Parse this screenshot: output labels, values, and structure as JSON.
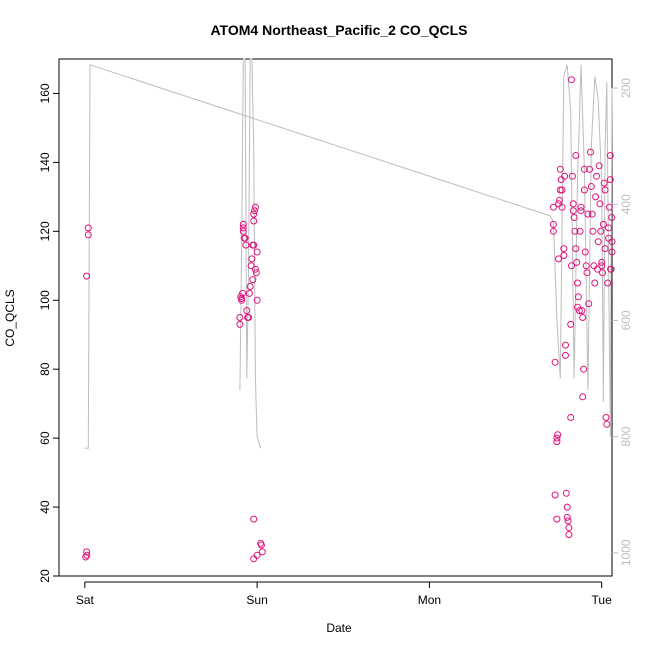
{
  "chart_data": {
    "type": "scatter",
    "title": "ATOM4 Northeast_Pacific_2 CO_QCLS",
    "xlabel": "Date",
    "ylabel": "CO_QCLS",
    "x_ticks": [
      {
        "label": "Sat",
        "day": 0
      },
      {
        "label": "Sun",
        "day": 1
      },
      {
        "label": "Mon",
        "day": 2
      },
      {
        "label": "Tue",
        "day": 3
      }
    ],
    "xlim_days": [
      -0.15,
      3.06
    ],
    "ylim": [
      20,
      170
    ],
    "y_ticks": [
      20,
      40,
      60,
      80,
      100,
      120,
      140,
      160
    ],
    "right_axis": {
      "label": "",
      "reversed": true,
      "lim": [
        1040,
        150
      ],
      "ticks": [
        200,
        400,
        600,
        800,
        1000
      ]
    },
    "grid": false,
    "point_color": "#e0147d",
    "line_color": "#bdbdbd",
    "series": [
      {
        "points": [
          [
            0.01,
            107
          ],
          [
            0.02,
            121
          ],
          [
            0.02,
            119
          ],
          [
            0.005,
            25.5
          ],
          [
            0.01,
            27
          ],
          [
            0.012,
            26
          ],
          [
            0.9,
            93
          ],
          [
            0.9,
            95
          ],
          [
            0.905,
            101
          ],
          [
            0.91,
            100
          ],
          [
            0.91,
            100.5
          ],
          [
            0.915,
            102
          ],
          [
            0.92,
            120
          ],
          [
            0.92,
            121
          ],
          [
            0.92,
            122
          ],
          [
            0.925,
            118
          ],
          [
            0.93,
            118
          ],
          [
            0.935,
            116
          ],
          [
            0.94,
            97
          ],
          [
            0.945,
            95
          ],
          [
            0.95,
            95
          ],
          [
            0.955,
            102
          ],
          [
            0.96,
            104
          ],
          [
            0.965,
            110
          ],
          [
            0.97,
            112
          ],
          [
            0.975,
            106
          ],
          [
            0.975,
            116
          ],
          [
            0.98,
            116
          ],
          [
            0.98,
            123
          ],
          [
            0.98,
            125
          ],
          [
            0.985,
            126
          ],
          [
            0.99,
            127
          ],
          [
            0.99,
            109
          ],
          [
            0.995,
            108
          ],
          [
            1.0,
            114
          ],
          [
            1.0,
            100
          ],
          [
            0.98,
            36.5
          ],
          [
            0.98,
            25
          ],
          [
            1.0,
            26
          ],
          [
            1.02,
            29.5
          ],
          [
            1.025,
            29
          ],
          [
            1.03,
            27
          ]
        ]
      },
      {
        "points": [
          [
            2.72,
            120
          ],
          [
            2.72,
            122
          ],
          [
            2.72,
            127
          ],
          [
            2.73,
            82
          ],
          [
            2.73,
            43.5
          ],
          [
            2.74,
            36.5
          ],
          [
            2.74,
            59
          ],
          [
            2.74,
            60
          ],
          [
            2.745,
            61
          ],
          [
            2.75,
            112
          ],
          [
            2.75,
            128
          ],
          [
            2.755,
            129
          ],
          [
            2.76,
            132
          ],
          [
            2.76,
            138
          ],
          [
            2.765,
            135
          ],
          [
            2.77,
            132
          ],
          [
            2.77,
            127
          ],
          [
            2.78,
            113
          ],
          [
            2.78,
            115
          ],
          [
            2.785,
            136
          ],
          [
            2.79,
            84
          ],
          [
            2.79,
            87
          ],
          [
            2.795,
            44
          ],
          [
            2.8,
            40
          ],
          [
            2.8,
            37
          ],
          [
            2.805,
            36
          ],
          [
            2.81,
            34
          ],
          [
            2.81,
            32
          ],
          [
            2.82,
            66
          ],
          [
            2.82,
            93
          ],
          [
            2.825,
            110
          ],
          [
            2.825,
            164
          ],
          [
            2.83,
            136
          ],
          [
            2.835,
            126
          ],
          [
            2.835,
            128
          ],
          [
            2.84,
            124
          ],
          [
            2.845,
            120
          ],
          [
            2.85,
            142
          ],
          [
            2.85,
            115
          ],
          [
            2.855,
            111
          ],
          [
            2.86,
            105
          ],
          [
            2.86,
            98
          ],
          [
            2.865,
            101
          ],
          [
            2.87,
            97
          ],
          [
            2.875,
            120
          ],
          [
            2.88,
            126
          ],
          [
            2.88,
            127
          ],
          [
            2.885,
            97
          ],
          [
            2.89,
            95
          ],
          [
            2.89,
            72
          ],
          [
            2.895,
            80
          ],
          [
            2.9,
            138
          ],
          [
            2.9,
            132
          ],
          [
            2.905,
            114
          ],
          [
            2.91,
            110
          ],
          [
            2.915,
            108
          ],
          [
            2.92,
            125
          ],
          [
            2.925,
            99
          ],
          [
            2.93,
            138
          ],
          [
            2.935,
            143
          ],
          [
            2.94,
            133
          ],
          [
            2.945,
            125
          ],
          [
            2.95,
            120
          ],
          [
            2.955,
            110
          ],
          [
            2.96,
            105
          ],
          [
            2.965,
            130
          ],
          [
            2.97,
            136
          ],
          [
            2.975,
            109
          ],
          [
            2.98,
            117
          ],
          [
            2.985,
            139
          ],
          [
            2.99,
            128
          ],
          [
            2.995,
            120
          ],
          [
            3.0,
            111
          ],
          [
            3.0,
            110
          ],
          [
            3.005,
            108
          ],
          [
            3.01,
            122
          ],
          [
            3.015,
            134
          ],
          [
            3.02,
            132
          ],
          [
            3.02,
            115
          ],
          [
            3.025,
            66
          ],
          [
            3.03,
            64
          ],
          [
            3.035,
            105
          ],
          [
            3.04,
            118
          ],
          [
            3.04,
            121
          ],
          [
            3.045,
            127
          ],
          [
            3.05,
            142
          ],
          [
            3.05,
            135
          ],
          [
            3.052,
            109
          ],
          [
            3.055,
            109
          ],
          [
            3.058,
            124
          ],
          [
            3.06,
            117
          ],
          [
            3.06,
            114
          ]
        ]
      }
    ],
    "altitude_line": [
      [
        0.0,
        820
      ],
      [
        0.02,
        820
      ],
      [
        0.03,
        160
      ],
      [
        2.7,
        420
      ],
      [
        2.72,
        430
      ],
      [
        2.74,
        600
      ],
      [
        2.76,
        700
      ],
      [
        2.78,
        180
      ],
      [
        2.8,
        160
      ],
      [
        2.82,
        240
      ],
      [
        2.84,
        700
      ],
      [
        2.86,
        360
      ],
      [
        2.88,
        160
      ],
      [
        2.9,
        340
      ],
      [
        2.92,
        720
      ],
      [
        2.94,
        300
      ],
      [
        2.96,
        180
      ],
      [
        2.98,
        220
      ],
      [
        3.0,
        360
      ],
      [
        3.01,
        740
      ],
      [
        3.02,
        300
      ],
      [
        3.03,
        190
      ],
      [
        3.05,
        800
      ],
      [
        3.06,
        200
      ]
    ],
    "altitude_line_sun": [
      [
        0.9,
        720
      ],
      [
        0.91,
        480
      ],
      [
        0.92,
        150
      ],
      [
        0.93,
        150
      ],
      [
        0.94,
        700
      ],
      [
        0.95,
        520
      ],
      [
        0.96,
        150
      ],
      [
        0.97,
        150
      ],
      [
        0.98,
        300
      ],
      [
        0.99,
        700
      ],
      [
        1.0,
        800
      ],
      [
        1.02,
        820
      ]
    ]
  }
}
